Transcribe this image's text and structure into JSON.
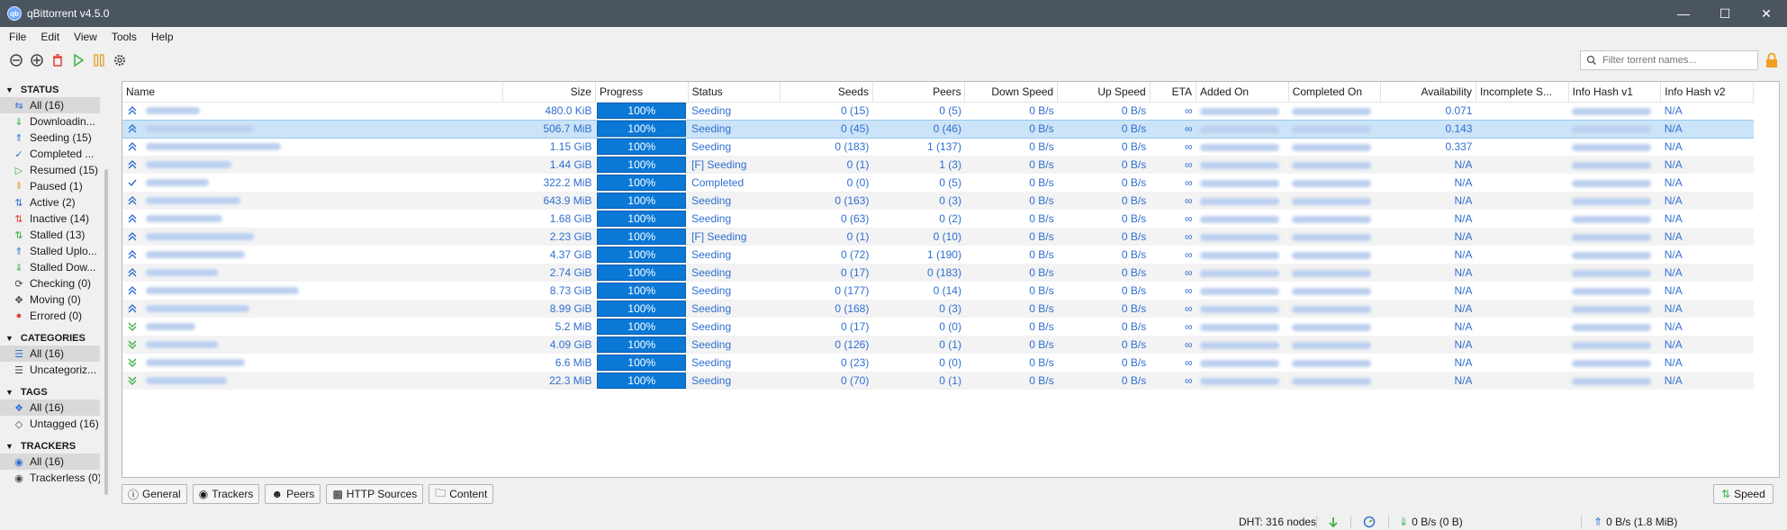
{
  "window": {
    "title": "qBittorrent v4.5.0"
  },
  "menu": [
    "File",
    "Edit",
    "View",
    "Tools",
    "Help"
  ],
  "toolbar": {
    "filter_placeholder": "Filter torrent names..."
  },
  "sidebar": {
    "status_title": "STATUS",
    "status_items": [
      {
        "label": "All (16)",
        "icon": "all-icon",
        "selected": true
      },
      {
        "label": "Downloadin...",
        "icon": "download-icon"
      },
      {
        "label": "Seeding (15)",
        "icon": "upload-icon"
      },
      {
        "label": "Completed ...",
        "icon": "check-icon"
      },
      {
        "label": "Resumed (15)",
        "icon": "play-icon"
      },
      {
        "label": "Paused (1)",
        "icon": "pause-icon"
      },
      {
        "label": "Active (2)",
        "icon": "active-icon"
      },
      {
        "label": "Inactive (14)",
        "icon": "inactive-icon"
      },
      {
        "label": "Stalled (13)",
        "icon": "stalled-icon"
      },
      {
        "label": "Stalled Uplo...",
        "icon": "stalled-upload-icon"
      },
      {
        "label": "Stalled Dow...",
        "icon": "stalled-download-icon"
      },
      {
        "label": "Checking (0)",
        "icon": "checking-icon"
      },
      {
        "label": "Moving (0)",
        "icon": "moving-icon"
      },
      {
        "label": "Errored (0)",
        "icon": "error-icon"
      }
    ],
    "categories_title": "CATEGORIES",
    "categories_items": [
      {
        "label": "All (16)",
        "selected": true
      },
      {
        "label": "Uncategoriz..."
      }
    ],
    "tags_title": "TAGS",
    "tags_items": [
      {
        "label": "All (16)",
        "selected": true
      },
      {
        "label": "Untagged (16)"
      }
    ],
    "trackers_title": "TRACKERS",
    "trackers_items": [
      {
        "label": "All (16)",
        "selected": true
      },
      {
        "label": "Trackerless (0)"
      }
    ]
  },
  "table": {
    "columns": [
      "Name",
      "Size",
      "Progress",
      "Status",
      "Seeds",
      "Peers",
      "Down Speed",
      "Up Speed",
      "ETA",
      "Added On",
      "Completed On",
      "Availability",
      "Incomplete S...",
      "Info Hash v1",
      "Info Hash v2"
    ],
    "rows": [
      {
        "size": "480.0 KiB",
        "progress": "100%",
        "status": "Seeding",
        "seeds": "0 (15)",
        "peers": "0 (5)",
        "down": "0 B/s",
        "up": "0 B/s",
        "eta": "∞",
        "avail": "0.071",
        "hash2": "N/A",
        "icon": "up"
      },
      {
        "size": "506.7 MiB",
        "progress": "100%",
        "status": "Seeding",
        "seeds": "0 (45)",
        "peers": "0 (46)",
        "down": "0 B/s",
        "up": "0 B/s",
        "eta": "∞",
        "avail": "0.143",
        "hash2": "N/A",
        "icon": "up",
        "selected": true
      },
      {
        "size": "1.15 GiB",
        "progress": "100%",
        "status": "Seeding",
        "seeds": "0 (183)",
        "peers": "1 (137)",
        "down": "0 B/s",
        "up": "0 B/s",
        "eta": "∞",
        "avail": "0.337",
        "hash2": "N/A",
        "icon": "up"
      },
      {
        "size": "1.44 GiB",
        "progress": "100%",
        "status": "[F] Seeding",
        "seeds": "0 (1)",
        "peers": "1 (3)",
        "down": "0 B/s",
        "up": "0 B/s",
        "eta": "∞",
        "avail": "N/A",
        "hash2": "N/A",
        "icon": "up"
      },
      {
        "size": "322.2 MiB",
        "progress": "100%",
        "status": "Completed",
        "seeds": "0 (0)",
        "peers": "0 (5)",
        "down": "0 B/s",
        "up": "0 B/s",
        "eta": "∞",
        "avail": "N/A",
        "hash2": "N/A",
        "icon": "check"
      },
      {
        "size": "643.9 MiB",
        "progress": "100%",
        "status": "Seeding",
        "seeds": "0 (163)",
        "peers": "0 (3)",
        "down": "0 B/s",
        "up": "0 B/s",
        "eta": "∞",
        "avail": "N/A",
        "hash2": "N/A",
        "icon": "up"
      },
      {
        "size": "1.68 GiB",
        "progress": "100%",
        "status": "Seeding",
        "seeds": "0 (63)",
        "peers": "0 (2)",
        "down": "0 B/s",
        "up": "0 B/s",
        "eta": "∞",
        "avail": "N/A",
        "hash2": "N/A",
        "icon": "up"
      },
      {
        "size": "2.23 GiB",
        "progress": "100%",
        "status": "[F] Seeding",
        "seeds": "0 (1)",
        "peers": "0 (10)",
        "down": "0 B/s",
        "up": "0 B/s",
        "eta": "∞",
        "avail": "N/A",
        "hash2": "N/A",
        "icon": "up"
      },
      {
        "size": "4.37 GiB",
        "progress": "100%",
        "status": "Seeding",
        "seeds": "0 (72)",
        "peers": "1 (190)",
        "down": "0 B/s",
        "up": "0 B/s",
        "eta": "∞",
        "avail": "N/A",
        "hash2": "N/A",
        "icon": "up"
      },
      {
        "size": "2.74 GiB",
        "progress": "100%",
        "status": "Seeding",
        "seeds": "0 (17)",
        "peers": "0 (183)",
        "down": "0 B/s",
        "up": "0 B/s",
        "eta": "∞",
        "avail": "N/A",
        "hash2": "N/A",
        "icon": "up"
      },
      {
        "size": "8.73 GiB",
        "progress": "100%",
        "status": "Seeding",
        "seeds": "0 (177)",
        "peers": "0 (14)",
        "down": "0 B/s",
        "up": "0 B/s",
        "eta": "∞",
        "avail": "N/A",
        "hash2": "N/A",
        "icon": "up"
      },
      {
        "size": "8.99 GiB",
        "progress": "100%",
        "status": "Seeding",
        "seeds": "0 (168)",
        "peers": "0 (3)",
        "down": "0 B/s",
        "up": "0 B/s",
        "eta": "∞",
        "avail": "N/A",
        "hash2": "N/A",
        "icon": "up"
      },
      {
        "size": "5.2 MiB",
        "progress": "100%",
        "status": "Seeding",
        "seeds": "0 (17)",
        "peers": "0 (0)",
        "down": "0 B/s",
        "up": "0 B/s",
        "eta": "∞",
        "avail": "N/A",
        "hash2": "N/A",
        "icon": "stalled"
      },
      {
        "size": "4.09 GiB",
        "progress": "100%",
        "status": "Seeding",
        "seeds": "0 (126)",
        "peers": "0 (1)",
        "down": "0 B/s",
        "up": "0 B/s",
        "eta": "∞",
        "avail": "N/A",
        "hash2": "N/A",
        "icon": "stalled"
      },
      {
        "size": "6.6 MiB",
        "progress": "100%",
        "status": "Seeding",
        "seeds": "0 (23)",
        "peers": "0 (0)",
        "down": "0 B/s",
        "up": "0 B/s",
        "eta": "∞",
        "avail": "N/A",
        "hash2": "N/A",
        "icon": "stalled"
      },
      {
        "size": "22.3 MiB",
        "progress": "100%",
        "status": "Seeding",
        "seeds": "0 (70)",
        "peers": "0 (1)",
        "down": "0 B/s",
        "up": "0 B/s",
        "eta": "∞",
        "avail": "N/A",
        "hash2": "N/A",
        "icon": "stalled"
      }
    ]
  },
  "bottom_tabs": [
    "General",
    "Trackers",
    "Peers",
    "HTTP Sources",
    "Content"
  ],
  "speed_button": "Speed",
  "statusbar": {
    "dht": "DHT: 316 nodes",
    "down": "0 B/s (0 B)",
    "up": "0 B/s (1.8 MiB)"
  },
  "colors": {
    "accent": "#0a78d7",
    "link": "#2f6fd1",
    "titlebar": "#4a5560"
  }
}
